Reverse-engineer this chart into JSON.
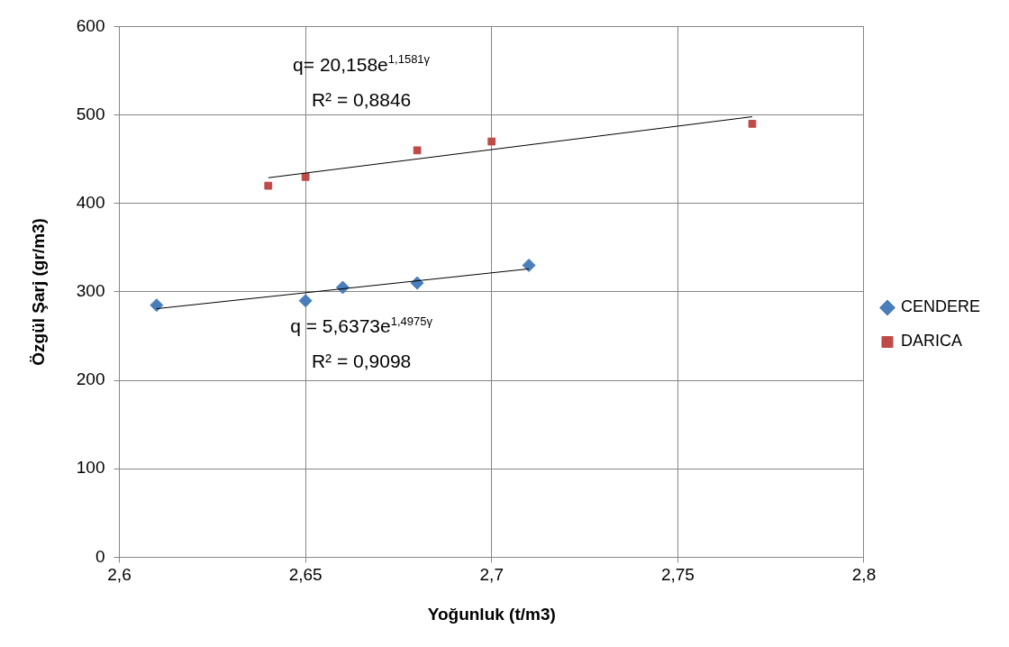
{
  "chart_data": {
    "type": "scatter",
    "xlabel": "Yoğunluk (t/m3)",
    "ylabel": "Özgül Şarj (gr/m3)",
    "xlim": [
      2.6,
      2.8
    ],
    "xticks": [
      {
        "value": 2.6,
        "label": "2,6"
      },
      {
        "value": 2.65,
        "label": "2,65"
      },
      {
        "value": 2.7,
        "label": "2,7"
      },
      {
        "value": 2.75,
        "label": "2,75"
      },
      {
        "value": 2.8,
        "label": "2,8"
      }
    ],
    "ylim": [
      0,
      600
    ],
    "yticks": [
      0,
      100,
      200,
      300,
      400,
      500,
      600
    ],
    "grid": true,
    "legend": "right",
    "series": [
      {
        "name": "CENDERE",
        "marker": "diamond",
        "color": "#4a7ebb",
        "x": [
          2.61,
          2.65,
          2.66,
          2.68,
          2.71
        ],
        "values": [
          285,
          290,
          305,
          310,
          330
        ]
      },
      {
        "name": "DARICA",
        "marker": "square",
        "color": "#be4b48",
        "x": [
          2.64,
          2.65,
          2.68,
          2.7,
          2.77
        ],
        "values": [
          420,
          430,
          460,
          470,
          490
        ]
      },
      {
        "type": "line",
        "marker": "none",
        "color": "#000000",
        "x": [
          2.61,
          2.71
        ],
        "values": [
          281,
          326
        ]
      },
      {
        "type": "line",
        "marker": "none",
        "color": "#000000",
        "x": [
          2.64,
          2.77
        ],
        "values": [
          429,
          498
        ]
      }
    ],
    "annotations": [
      "q= 20,158e$^{1,1581γ}$",
      "R² = 0,8846",
      "q = 5,6373e$^{1,4975γ}$",
      "R² = 0,9098"
    ]
  }
}
